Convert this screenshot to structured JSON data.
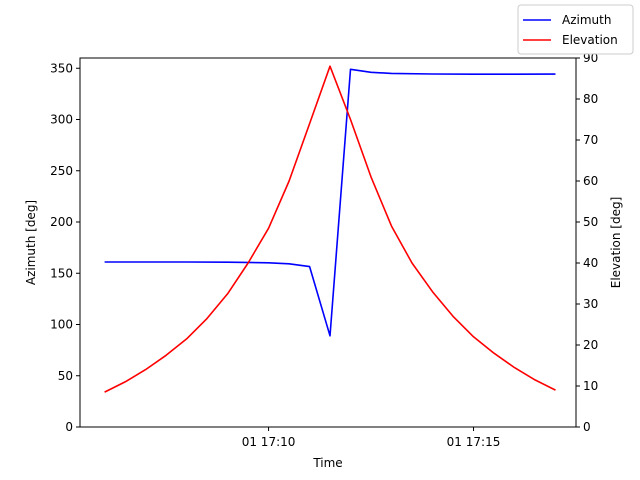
{
  "chart_data": {
    "type": "line",
    "xlabel": "Time",
    "ylabel_left": "Azimuth [deg]",
    "ylabel_right": "Elevation [deg]",
    "x_unit": "minutes",
    "xlim": [
      5.4,
      17.5
    ],
    "ylim_left": [
      0,
      360
    ],
    "ylim_right": [
      0,
      90
    ],
    "x_ticks": [
      {
        "value": 10,
        "label": "01 17:10"
      },
      {
        "value": 15,
        "label": "01 17:15"
      }
    ],
    "y_ticks_left": [
      0,
      50,
      100,
      150,
      200,
      250,
      300,
      350
    ],
    "y_ticks_right": [
      0,
      10,
      20,
      30,
      40,
      50,
      60,
      70,
      80,
      90
    ],
    "grid": false,
    "legend_position": "top-right",
    "series": [
      {
        "name": "Azimuth",
        "axis": "left",
        "color": "#0000ff",
        "points": [
          [
            6.0,
            161
          ],
          [
            7.0,
            161
          ],
          [
            8.0,
            161
          ],
          [
            9.0,
            160.8
          ],
          [
            10.0,
            160.2
          ],
          [
            10.5,
            159.2
          ],
          [
            11.0,
            156.5
          ],
          [
            11.5,
            89
          ],
          [
            12.0,
            349
          ],
          [
            12.5,
            346
          ],
          [
            13.0,
            345
          ],
          [
            14.0,
            344.4
          ],
          [
            15.0,
            344.2
          ],
          [
            16.0,
            344.2
          ],
          [
            17.0,
            344.3
          ]
        ]
      },
      {
        "name": "Elevation",
        "axis": "right",
        "color": "#ff0000",
        "points": [
          [
            6.0,
            8.5
          ],
          [
            6.5,
            11.0
          ],
          [
            7.0,
            14.0
          ],
          [
            7.5,
            17.5
          ],
          [
            8.0,
            21.5
          ],
          [
            8.5,
            26.5
          ],
          [
            9.0,
            32.5
          ],
          [
            9.5,
            40.0
          ],
          [
            10.0,
            48.5
          ],
          [
            10.5,
            60.0
          ],
          [
            11.0,
            74.0
          ],
          [
            11.5,
            88.0
          ],
          [
            12.0,
            75.0
          ],
          [
            12.5,
            61.0
          ],
          [
            13.0,
            49.0
          ],
          [
            13.5,
            40.0
          ],
          [
            14.0,
            33.0
          ],
          [
            14.5,
            27.0
          ],
          [
            15.0,
            22.0
          ],
          [
            15.5,
            18.0
          ],
          [
            16.0,
            14.5
          ],
          [
            16.5,
            11.5
          ],
          [
            17.0,
            9.0
          ]
        ]
      }
    ]
  }
}
